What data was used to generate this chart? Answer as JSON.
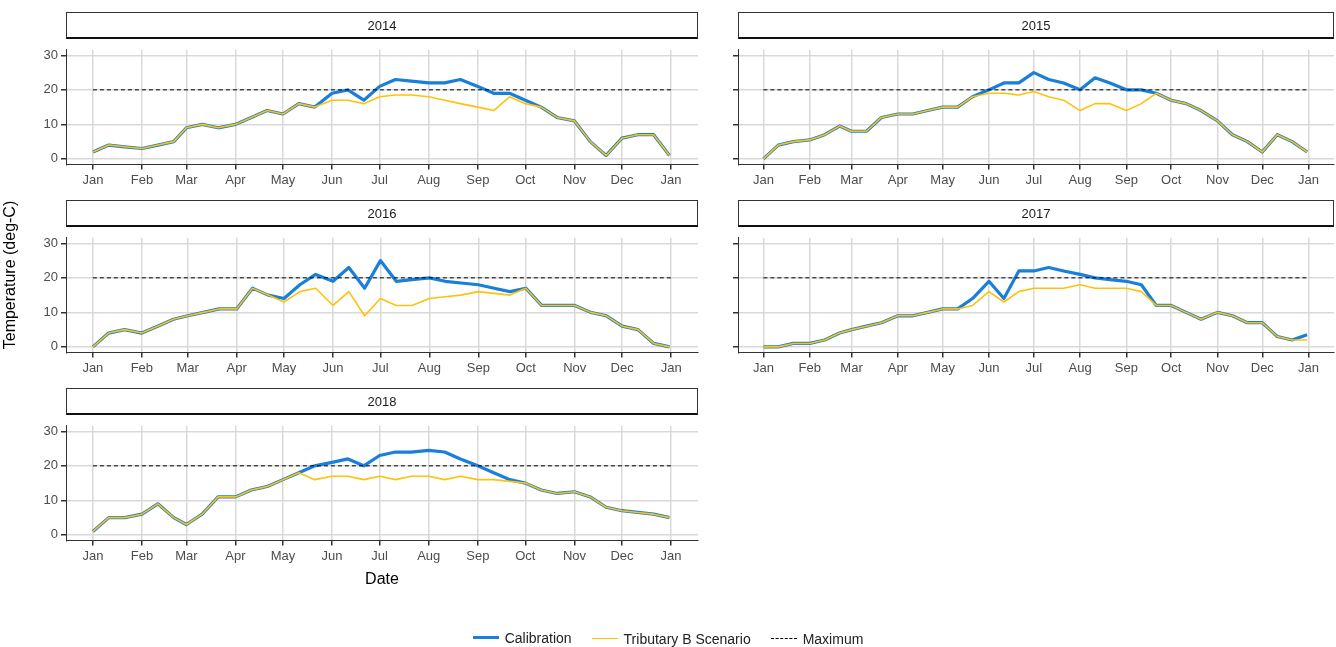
{
  "chart_data": [
    {
      "type": "line",
      "title": "2014",
      "x": [
        "2014-01-01",
        "2014-01-11",
        "2014-01-21",
        "2014-02-01",
        "2014-02-11",
        "2014-02-21",
        "2014-03-01",
        "2014-03-11",
        "2014-03-21",
        "2014-04-01",
        "2014-04-11",
        "2014-04-21",
        "2014-05-01",
        "2014-05-11",
        "2014-05-21",
        "2014-06-01",
        "2014-06-11",
        "2014-06-21",
        "2014-07-01",
        "2014-07-11",
        "2014-07-21",
        "2014-08-01",
        "2014-08-11",
        "2014-08-21",
        "2014-09-01",
        "2014-09-11",
        "2014-09-21",
        "2014-10-01",
        "2014-10-11",
        "2014-10-21",
        "2014-11-01",
        "2014-11-11",
        "2014-11-21",
        "2014-12-01",
        "2014-12-11",
        "2014-12-21",
        "2014-12-31"
      ],
      "series": [
        {
          "color": "#1a7fdb",
          "values": [
            2,
            4,
            3.5,
            3,
            4,
            5,
            9,
            10,
            9,
            10,
            12,
            14,
            13,
            16,
            15,
            19,
            20,
            17,
            21,
            23,
            22.5,
            22,
            22,
            23,
            21,
            19,
            19,
            17,
            15,
            12,
            11,
            5,
            1,
            6,
            7,
            7,
            1
          ]
        },
        {
          "color": "#ffc20a",
          "values": [
            2,
            4,
            3.5,
            3,
            4,
            5,
            9,
            10,
            9,
            10,
            12,
            14,
            13,
            16,
            15,
            17,
            17,
            16,
            18,
            18.5,
            18.5,
            18,
            17,
            16,
            15,
            14,
            18,
            16,
            15,
            12,
            11,
            5,
            1,
            6,
            7,
            7,
            1
          ]
        }
      ],
      "xlim": [
        "2013-12-15",
        "2015-01-18"
      ],
      "xticks": [
        {
          "value": "2014-01-01",
          "label": "Jan"
        },
        {
          "value": "2014-02-01",
          "label": "Feb"
        },
        {
          "value": "2014-03-01",
          "label": "Mar"
        },
        {
          "value": "2014-04-01",
          "label": "Apr"
        },
        {
          "value": "2014-05-01",
          "label": "May"
        },
        {
          "value": "2014-06-01",
          "label": "Jun"
        },
        {
          "value": "2014-07-01",
          "label": "Jul"
        },
        {
          "value": "2014-08-01",
          "label": "Aug"
        },
        {
          "value": "2014-09-01",
          "label": "Sep"
        },
        {
          "value": "2014-10-01",
          "label": "Oct"
        },
        {
          "value": "2014-11-01",
          "label": "Nov"
        },
        {
          "value": "2014-12-01",
          "label": "Dec"
        },
        {
          "value": "2015-01-01",
          "label": "Jan"
        }
      ],
      "ylim": [
        -1.6,
        31.6
      ],
      "yticks": [
        0,
        10,
        20,
        30
      ],
      "grid": true,
      "legend": false,
      "marker": "none",
      "ref_lines": [
        {
          "axis": "y",
          "value": 20,
          "color": "#000000",
          "line_style": "dashed"
        }
      ]
    },
    {
      "type": "line",
      "title": "2015",
      "x": [
        "2015-01-01",
        "2015-01-11",
        "2015-01-21",
        "2015-02-01",
        "2015-02-11",
        "2015-02-21",
        "2015-03-01",
        "2015-03-11",
        "2015-03-21",
        "2015-04-01",
        "2015-04-11",
        "2015-04-21",
        "2015-05-01",
        "2015-05-11",
        "2015-05-21",
        "2015-06-01",
        "2015-06-11",
        "2015-06-21",
        "2015-07-01",
        "2015-07-11",
        "2015-07-21",
        "2015-08-01",
        "2015-08-11",
        "2015-08-21",
        "2015-09-01",
        "2015-09-11",
        "2015-09-21",
        "2015-10-01",
        "2015-10-11",
        "2015-10-21",
        "2015-11-01",
        "2015-11-11",
        "2015-11-21",
        "2015-12-01",
        "2015-12-11",
        "2015-12-21",
        "2015-12-31"
      ],
      "series": [
        {
          "color": "#1a7fdb",
          "values": [
            0,
            4,
            5,
            5.5,
            7,
            9.5,
            8,
            8,
            12,
            13,
            13,
            14,
            15,
            15,
            18,
            20,
            22,
            22,
            25,
            23,
            22,
            20,
            23.5,
            22,
            20,
            20,
            19,
            17,
            16,
            14,
            11,
            7,
            5,
            2,
            7,
            5,
            2
          ]
        },
        {
          "color": "#ffc20a",
          "values": [
            0,
            4,
            5,
            5.5,
            7,
            9.5,
            8,
            8,
            12,
            13,
            13,
            14,
            15,
            15,
            18,
            19,
            19,
            18.5,
            19.5,
            18,
            17,
            14,
            16,
            16,
            14,
            16,
            19,
            17,
            16,
            14,
            11,
            7,
            5,
            2,
            7,
            5,
            2
          ]
        }
      ],
      "xlim": [
        "2014-12-15",
        "2016-01-18"
      ],
      "xticks": [
        {
          "value": "2015-01-01",
          "label": "Jan"
        },
        {
          "value": "2015-02-01",
          "label": "Feb"
        },
        {
          "value": "2015-03-01",
          "label": "Mar"
        },
        {
          "value": "2015-04-01",
          "label": "Apr"
        },
        {
          "value": "2015-05-01",
          "label": "May"
        },
        {
          "value": "2015-06-01",
          "label": "Jun"
        },
        {
          "value": "2015-07-01",
          "label": "Jul"
        },
        {
          "value": "2015-08-01",
          "label": "Aug"
        },
        {
          "value": "2015-09-01",
          "label": "Sep"
        },
        {
          "value": "2015-10-01",
          "label": "Oct"
        },
        {
          "value": "2015-11-01",
          "label": "Nov"
        },
        {
          "value": "2015-12-01",
          "label": "Dec"
        },
        {
          "value": "2016-01-01",
          "label": "Jan"
        }
      ],
      "ylim": [
        -1.6,
        31.6
      ],
      "yticks": [
        0,
        10,
        20,
        30
      ],
      "tick_labels": "x",
      "grid": true,
      "legend": false,
      "marker": "none",
      "ref_lines": [
        {
          "axis": "y",
          "value": 20,
          "color": "#000000",
          "line_style": "dashed"
        }
      ]
    },
    {
      "type": "line",
      "title": "2016",
      "ylabel": "Temperature (deg-C)",
      "x": [
        "2016-01-01",
        "2016-01-11",
        "2016-01-21",
        "2016-02-01",
        "2016-02-11",
        "2016-02-21",
        "2016-03-01",
        "2016-03-11",
        "2016-03-21",
        "2016-04-01",
        "2016-04-11",
        "2016-04-21",
        "2016-05-01",
        "2016-05-11",
        "2016-05-21",
        "2016-06-01",
        "2016-06-11",
        "2016-06-21",
        "2016-07-01",
        "2016-07-11",
        "2016-07-21",
        "2016-08-01",
        "2016-08-11",
        "2016-08-21",
        "2016-09-01",
        "2016-09-11",
        "2016-09-21",
        "2016-10-01",
        "2016-10-11",
        "2016-10-21",
        "2016-11-01",
        "2016-11-11",
        "2016-11-21",
        "2016-12-01",
        "2016-12-11",
        "2016-12-21",
        "2016-12-31"
      ],
      "series": [
        {
          "color": "#1a7fdb",
          "values": [
            0,
            4,
            5,
            4,
            6,
            8,
            9,
            10,
            11,
            11,
            17,
            15,
            14,
            18,
            21,
            19,
            23,
            17,
            25,
            19,
            19.5,
            20,
            19,
            18.5,
            18,
            17,
            16,
            17,
            12,
            12,
            12,
            10,
            9,
            6,
            5,
            1,
            0
          ]
        },
        {
          "color": "#ffc20a",
          "values": [
            0,
            4,
            5,
            4,
            6,
            8,
            9,
            10,
            11,
            11,
            17,
            15,
            13,
            16,
            17,
            12,
            16,
            9,
            14,
            12,
            12,
            14,
            14.5,
            15,
            16,
            15.5,
            15,
            17,
            12,
            12,
            12,
            10,
            9,
            6,
            5,
            1,
            0
          ]
        }
      ],
      "xlim": [
        "2015-12-15",
        "2017-01-18"
      ],
      "xticks": [
        {
          "value": "2016-01-01",
          "label": "Jan"
        },
        {
          "value": "2016-02-01",
          "label": "Feb"
        },
        {
          "value": "2016-03-01",
          "label": "Mar"
        },
        {
          "value": "2016-04-01",
          "label": "Apr"
        },
        {
          "value": "2016-05-01",
          "label": "May"
        },
        {
          "value": "2016-06-01",
          "label": "Jun"
        },
        {
          "value": "2016-07-01",
          "label": "Jul"
        },
        {
          "value": "2016-08-01",
          "label": "Aug"
        },
        {
          "value": "2016-09-01",
          "label": "Sep"
        },
        {
          "value": "2016-10-01",
          "label": "Oct"
        },
        {
          "value": "2016-11-01",
          "label": "Nov"
        },
        {
          "value": "2016-12-01",
          "label": "Dec"
        },
        {
          "value": "2017-01-01",
          "label": "Jan"
        }
      ],
      "ylim": [
        -1.6,
        31.6
      ],
      "yticks": [
        0,
        10,
        20,
        30
      ],
      "grid": true,
      "legend": false,
      "marker": "none",
      "ref_lines": [
        {
          "axis": "y",
          "value": 20,
          "color": "#000000",
          "line_style": "dashed"
        }
      ]
    },
    {
      "type": "line",
      "title": "2017",
      "x": [
        "2017-01-01",
        "2017-01-11",
        "2017-01-21",
        "2017-02-01",
        "2017-02-11",
        "2017-02-21",
        "2017-03-01",
        "2017-03-11",
        "2017-03-21",
        "2017-04-01",
        "2017-04-11",
        "2017-04-21",
        "2017-05-01",
        "2017-05-11",
        "2017-05-21",
        "2017-06-01",
        "2017-06-11",
        "2017-06-21",
        "2017-07-01",
        "2017-07-11",
        "2017-07-21",
        "2017-08-01",
        "2017-08-11",
        "2017-08-21",
        "2017-09-01",
        "2017-09-11",
        "2017-09-21",
        "2017-10-01",
        "2017-10-11",
        "2017-10-21",
        "2017-11-01",
        "2017-11-11",
        "2017-11-21",
        "2017-12-01",
        "2017-12-11",
        "2017-12-21",
        "2017-12-31"
      ],
      "series": [
        {
          "color": "#1a7fdb",
          "values": [
            0,
            0,
            1,
            1,
            2,
            4,
            5,
            6,
            7,
            9,
            9,
            10,
            11,
            11,
            14,
            19,
            14,
            22,
            22,
            23,
            22,
            21,
            20,
            19.5,
            19,
            18,
            12,
            12,
            10,
            8,
            10,
            9,
            7,
            7,
            3,
            2,
            3.5
          ]
        },
        {
          "color": "#ffc20a",
          "values": [
            0,
            0,
            1,
            1,
            2,
            4,
            5,
            6,
            7,
            9,
            9,
            10,
            11,
            11,
            12,
            16,
            13,
            16,
            17,
            17,
            17,
            18,
            17,
            17,
            17,
            16,
            12,
            12,
            10,
            8,
            10,
            9,
            7,
            7,
            3,
            2,
            2
          ]
        }
      ],
      "xlim": [
        "2016-12-15",
        "2018-01-18"
      ],
      "xticks": [
        {
          "value": "2017-01-01",
          "label": "Jan"
        },
        {
          "value": "2017-02-01",
          "label": "Feb"
        },
        {
          "value": "2017-03-01",
          "label": "Mar"
        },
        {
          "value": "2017-04-01",
          "label": "Apr"
        },
        {
          "value": "2017-05-01",
          "label": "May"
        },
        {
          "value": "2017-06-01",
          "label": "Jun"
        },
        {
          "value": "2017-07-01",
          "label": "Jul"
        },
        {
          "value": "2017-08-01",
          "label": "Aug"
        },
        {
          "value": "2017-09-01",
          "label": "Sep"
        },
        {
          "value": "2017-10-01",
          "label": "Oct"
        },
        {
          "value": "2017-11-01",
          "label": "Nov"
        },
        {
          "value": "2017-12-01",
          "label": "Dec"
        },
        {
          "value": "2018-01-01",
          "label": "Jan"
        }
      ],
      "ylim": [
        -1.6,
        31.6
      ],
      "yticks": [
        0,
        10,
        20,
        30
      ],
      "tick_labels": "x",
      "grid": true,
      "legend": false,
      "marker": "none",
      "ref_lines": [
        {
          "axis": "y",
          "value": 20,
          "color": "#000000",
          "line_style": "dashed"
        }
      ]
    },
    {
      "type": "line",
      "title": "2018",
      "xlabel": "Date",
      "x": [
        "2018-01-01",
        "2018-01-11",
        "2018-01-21",
        "2018-02-01",
        "2018-02-11",
        "2018-02-21",
        "2018-03-01",
        "2018-03-11",
        "2018-03-21",
        "2018-04-01",
        "2018-04-11",
        "2018-04-21",
        "2018-05-01",
        "2018-05-11",
        "2018-05-21",
        "2018-06-01",
        "2018-06-11",
        "2018-06-21",
        "2018-07-01",
        "2018-07-11",
        "2018-07-21",
        "2018-08-01",
        "2018-08-11",
        "2018-08-21",
        "2018-09-01",
        "2018-09-11",
        "2018-09-21",
        "2018-10-01",
        "2018-10-11",
        "2018-10-21",
        "2018-11-01",
        "2018-11-11",
        "2018-11-21",
        "2018-12-01",
        "2018-12-11",
        "2018-12-21",
        "2018-12-31"
      ],
      "series": [
        {
          "name": "Calibration",
          "color": "#1a7fdb",
          "values": [
            1,
            5,
            5,
            6,
            9,
            5,
            3,
            6,
            11,
            11,
            13,
            14,
            16,
            18,
            20,
            21,
            22,
            20,
            23,
            24,
            24,
            24.5,
            24,
            22,
            20,
            18,
            16,
            15,
            13,
            12,
            12.5,
            11,
            8,
            7,
            6.5,
            6,
            5
          ]
        },
        {
          "name": "Tributary B Scenario",
          "color": "#ffc20a",
          "values": [
            1,
            5,
            5,
            6,
            9,
            5,
            3,
            6,
            11,
            11,
            13,
            14,
            16,
            18,
            16,
            17,
            17,
            16,
            17,
            16,
            17,
            17,
            16,
            17,
            16,
            16,
            15.5,
            15,
            13,
            12,
            12.5,
            11,
            8,
            7,
            6.5,
            6,
            5
          ]
        }
      ],
      "xlim": [
        "2017-12-15",
        "2019-01-18"
      ],
      "xticks": [
        {
          "value": "2018-01-01",
          "label": "Jan"
        },
        {
          "value": "2018-02-01",
          "label": "Feb"
        },
        {
          "value": "2018-03-01",
          "label": "Mar"
        },
        {
          "value": "2018-04-01",
          "label": "Apr"
        },
        {
          "value": "2018-05-01",
          "label": "May"
        },
        {
          "value": "2018-06-01",
          "label": "Jun"
        },
        {
          "value": "2018-07-01",
          "label": "Jul"
        },
        {
          "value": "2018-08-01",
          "label": "Aug"
        },
        {
          "value": "2018-09-01",
          "label": "Sep"
        },
        {
          "value": "2018-10-01",
          "label": "Oct"
        },
        {
          "value": "2018-11-01",
          "label": "Nov"
        },
        {
          "value": "2018-12-01",
          "label": "Dec"
        },
        {
          "value": "2019-01-01",
          "label": "Jan"
        }
      ],
      "ylim": [
        -1.6,
        31.6
      ],
      "yticks": [
        0,
        10,
        20,
        30
      ],
      "grid": true,
      "legend": "bottom",
      "marker": "none",
      "ref_lines": [
        {
          "axis": "y",
          "value": 20,
          "label": "Maximum",
          "color": "#000000",
          "line_style": "dashed"
        }
      ]
    }
  ]
}
